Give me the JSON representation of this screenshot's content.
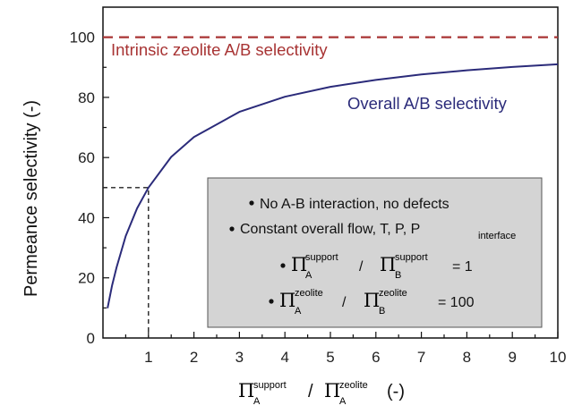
{
  "chart_data": {
    "type": "line",
    "title": "",
    "xlabel": {
      "pi": "Π",
      "a_sub": "A",
      "a_sup": "support",
      "slash": "/",
      "b_sub": "A",
      "b_sup": "zeolite",
      "unit": "(-)"
    },
    "ylabel": "Permeance selectivity  (-)",
    "xlim": [
      0,
      10
    ],
    "ylim": [
      0,
      110
    ],
    "xticks": [
      1,
      2,
      3,
      4,
      5,
      6,
      7,
      8,
      9,
      10
    ],
    "yticks": [
      0,
      20,
      40,
      60,
      80,
      100
    ],
    "grid": false,
    "series": [
      {
        "name": "Overall A/B selectivity",
        "color": "#2b2b7a",
        "style": "solid",
        "x": [
          0.1,
          0.2,
          0.3,
          0.5,
          0.75,
          1,
          1.5,
          2,
          3,
          4,
          5,
          6,
          7,
          8,
          9,
          10
        ],
        "y": [
          9.9,
          17.5,
          23.5,
          33.9,
          43.1,
          50.0,
          60.2,
          66.8,
          75.2,
          80.2,
          83.5,
          85.8,
          87.6,
          89.0,
          90.1,
          91.0
        ]
      },
      {
        "name": "Intrinsic zeolite A/B selectivity",
        "color": "#a83434",
        "style": "dashed",
        "x": [
          0,
          10
        ],
        "y": [
          100,
          100
        ]
      }
    ],
    "reference_lines": {
      "x": 1,
      "y": 50,
      "color": "#222222",
      "style": "dashed"
    },
    "annotation_box": {
      "fill": "#d4d4d4",
      "bullets": [
        {
          "text": "No A-B interaction, no defects"
        },
        {
          "text": "Constant overall flow, T, P, P",
          "sub": "interface"
        },
        {
          "pi": "Π",
          "a_sub": "A",
          "a_sup": "support",
          "slash": "/",
          "b_sub": "B",
          "b_sup": "support",
          "value": "= 1"
        },
        {
          "pi": "Π",
          "a_sub": "A",
          "a_sup": "zeolite",
          "slash": "/",
          "b_sub": "B",
          "b_sup": "zeolite",
          "value": "= 100"
        }
      ]
    }
  }
}
